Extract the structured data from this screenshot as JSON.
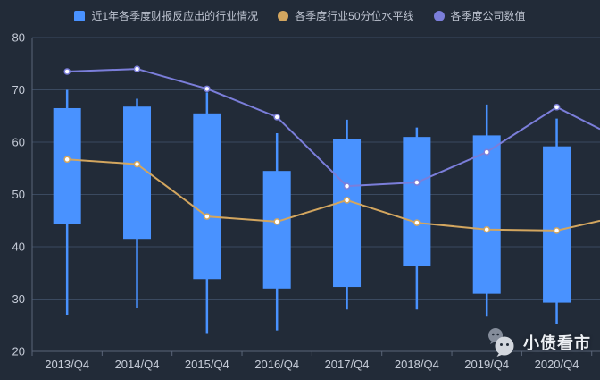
{
  "watermark": {
    "icon": "wechat-icon",
    "text": "小债看市"
  },
  "colors": {
    "background": "#222b38",
    "grid": "#3b4a60",
    "axis": "#5a6578",
    "tick_label": "#c6ccd8",
    "legend_text": "#bdc3d0",
    "point_fill": "#ffffff",
    "candle_blue": "#4992ff",
    "line_orange": "#d3a65f",
    "line_purple": "#7b7eda",
    "watermark_text": "#edf0f4"
  },
  "chart_data": {
    "type": "candlestick+line",
    "title": "",
    "categories": [
      "2013/Q4",
      "2014/Q4",
      "2015/Q4",
      "2016/Q4",
      "2017/Q4",
      "2018/Q4",
      "2019/Q4",
      "2020/Q4"
    ],
    "ylim": [
      20,
      80
    ],
    "yticks": [
      20,
      30,
      40,
      50,
      60,
      70,
      80
    ],
    "grid": true,
    "legend_position": "top",
    "series": [
      {
        "name": "近1年各季度财报反应出的行业情况",
        "type": "candlestick",
        "color": "#4992ff",
        "value_format": "[whisker_low, box_bottom, box_top, whisker_high]",
        "values": [
          [
            27.0,
            44.4,
            66.5,
            70.0
          ],
          [
            28.3,
            41.5,
            66.8,
            68.3
          ],
          [
            23.5,
            33.8,
            65.5,
            69.5
          ],
          [
            24.0,
            32.0,
            54.5,
            61.7
          ],
          [
            28.0,
            32.3,
            60.6,
            64.3
          ],
          [
            28.0,
            36.4,
            61.0,
            62.8
          ],
          [
            26.8,
            31.0,
            61.3,
            67.2
          ],
          [
            25.3,
            29.3,
            59.2,
            64.5
          ]
        ]
      },
      {
        "name": "各季度行业50分位水平线",
        "type": "line",
        "color": "#d3a65f",
        "values": [
          56.7,
          55.8,
          45.8,
          44.8,
          48.9,
          44.6,
          43.3,
          43.1
        ],
        "trailing_edge_value": 45.0
      },
      {
        "name": "各季度公司数值",
        "type": "line",
        "color": "#7b7eda",
        "values": [
          73.5,
          74.0,
          70.2,
          64.8,
          51.6,
          52.3,
          58.1,
          66.7
        ],
        "trailing_edge_value": 62.5
      }
    ]
  }
}
